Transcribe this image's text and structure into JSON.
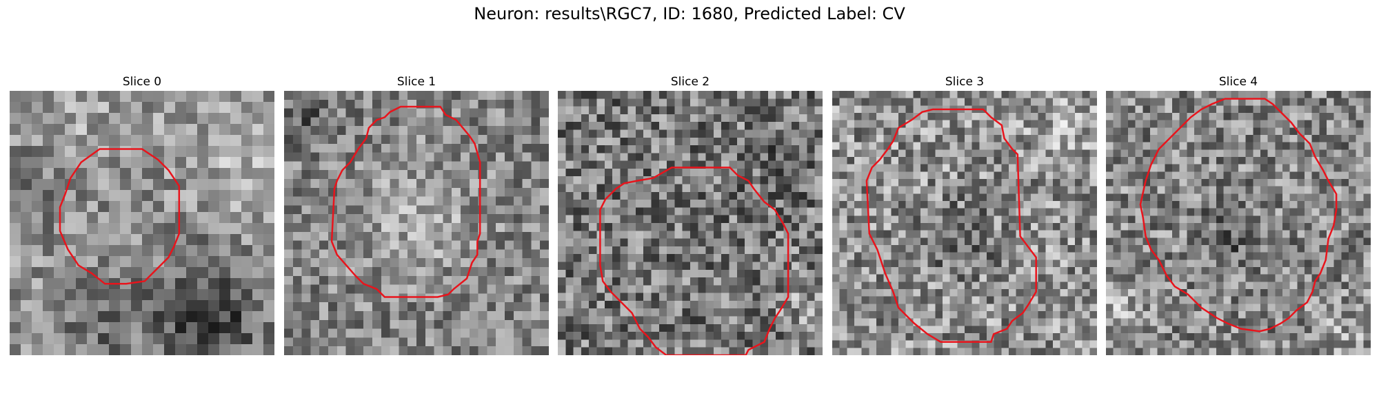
{
  "figure": {
    "title": "Neuron: results\\RGC7, ID: 1680, Predicted Label: CV",
    "contour_color": "#e8141c"
  },
  "slices": [
    {
      "title": "Slice 0"
    },
    {
      "title": "Slice 1"
    },
    {
      "title": "Slice 2"
    },
    {
      "title": "Slice 3"
    },
    {
      "title": "Slice 4"
    }
  ]
}
